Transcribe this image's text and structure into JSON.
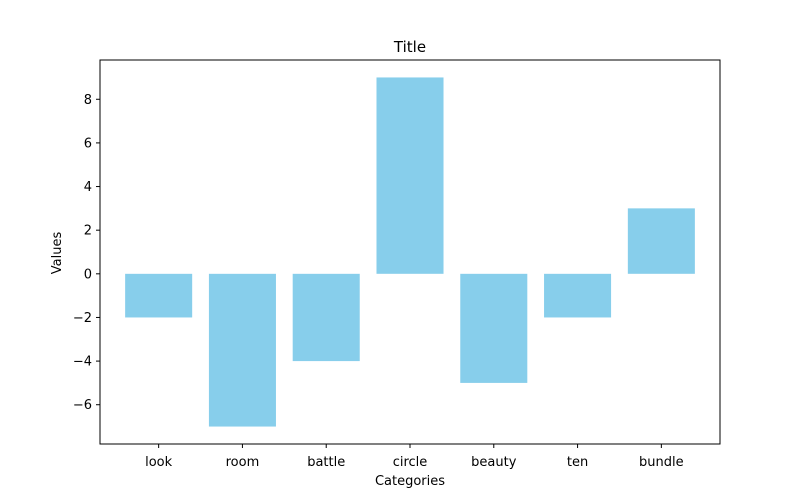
{
  "chart_data": {
    "type": "bar",
    "title": "Title",
    "xlabel": "Categories",
    "ylabel": "Values",
    "categories": [
      "look",
      "room",
      "battle",
      "circle",
      "beauty",
      "ten",
      "bundle"
    ],
    "values": [
      -2,
      -7,
      -4,
      9,
      -5,
      -2,
      3
    ],
    "ylim": [
      -7.8,
      9.8
    ],
    "yticks": [
      -6,
      -4,
      -2,
      0,
      2,
      4,
      6,
      8
    ],
    "ytick_labels": [
      "−6",
      "−4",
      "−2",
      "0",
      "2",
      "4",
      "6",
      "8"
    ],
    "bar_color": "#87CEEB",
    "grid": false,
    "legend": "none"
  }
}
